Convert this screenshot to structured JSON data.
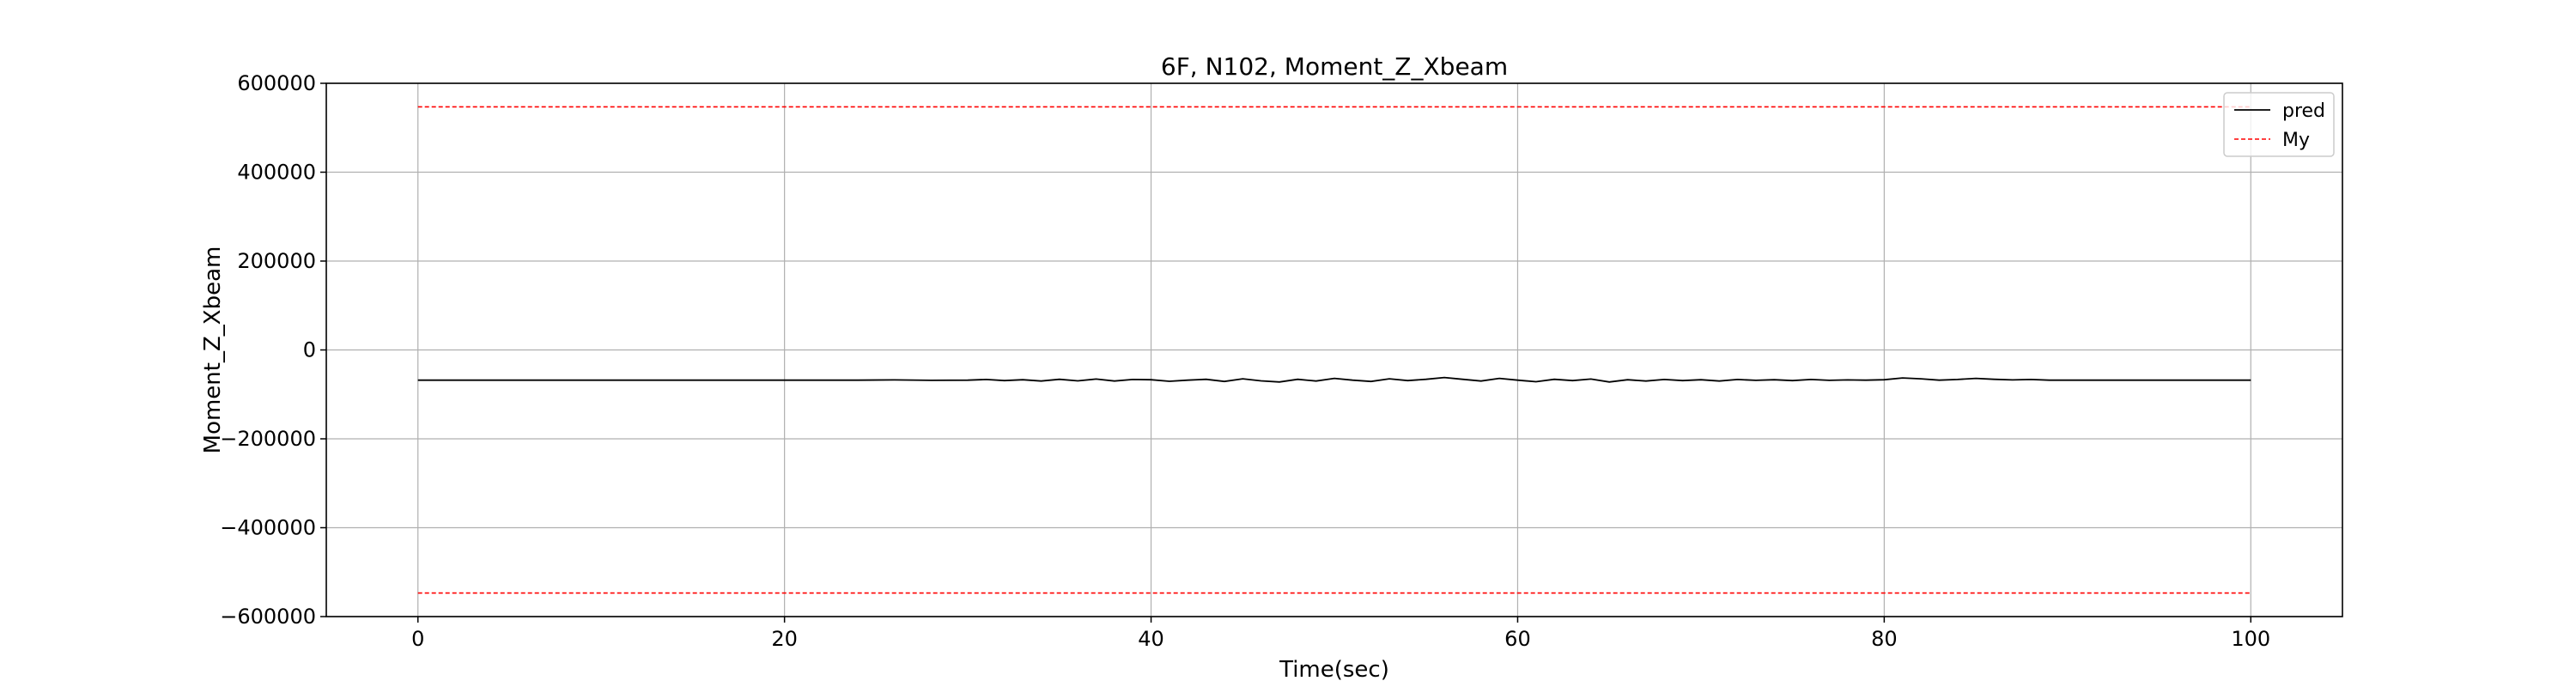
{
  "chart_data": {
    "type": "line",
    "title": "6F, N102, Moment_Z_Xbeam",
    "xlabel": "Time(sec)",
    "ylabel": "Moment_Z_Xbeam",
    "xlim": [
      -5,
      105
    ],
    "ylim": [
      -600000,
      600000
    ],
    "xticks": [
      0,
      20,
      40,
      60,
      80,
      100
    ],
    "yticks": [
      -600000,
      -400000,
      -200000,
      0,
      200000,
      400000,
      600000
    ],
    "grid": true,
    "legend_position": "top-right",
    "series": [
      {
        "name": "pred",
        "color": "#000000",
        "style": "solid",
        "x": [
          0,
          2,
          4,
          6,
          8,
          10,
          12,
          14,
          16,
          18,
          20,
          22,
          24,
          26,
          28,
          30,
          31,
          32,
          33,
          34,
          35,
          36,
          37,
          38,
          39,
          40,
          41,
          42,
          43,
          44,
          45,
          46,
          47,
          48,
          49,
          50,
          51,
          52,
          53,
          54,
          55,
          56,
          57,
          58,
          59,
          60,
          61,
          62,
          63,
          64,
          65,
          66,
          67,
          68,
          69,
          70,
          71,
          72,
          73,
          74,
          75,
          76,
          77,
          78,
          79,
          80,
          81,
          82,
          83,
          84,
          85,
          86,
          87,
          88,
          89,
          90,
          92,
          94,
          96,
          98,
          100
        ],
        "values": [
          -68000,
          -68000,
          -68000,
          -68000,
          -68000,
          -68000,
          -68000,
          -68000,
          -68000,
          -68000,
          -68000,
          -68000,
          -68000,
          -67500,
          -68500,
          -68000,
          -66500,
          -69000,
          -67000,
          -70000,
          -66000,
          -69500,
          -65500,
          -70000,
          -66500,
          -67000,
          -70500,
          -68000,
          -66000,
          -71000,
          -65000,
          -69500,
          -72000,
          -66000,
          -70000,
          -64000,
          -68000,
          -71000,
          -65000,
          -69000,
          -66000,
          -62000,
          -66000,
          -70000,
          -64000,
          -68000,
          -71500,
          -66000,
          -69000,
          -65500,
          -72000,
          -67000,
          -70000,
          -66500,
          -69000,
          -67000,
          -70000,
          -66500,
          -68500,
          -67000,
          -69000,
          -66500,
          -68500,
          -67500,
          -68000,
          -67000,
          -63000,
          -65000,
          -68000,
          -66500,
          -64000,
          -66000,
          -67500,
          -66500,
          -68000,
          -68000,
          -68000,
          -68000,
          -68000,
          -68000,
          -68000
        ]
      },
      {
        "name": "My",
        "color": "#ff0000",
        "style": "dashed",
        "x": [
          0,
          100
        ],
        "values": [
          547000,
          547000
        ]
      },
      {
        "name": "",
        "color": "#ff0000",
        "style": "dashed",
        "x": [
          0,
          100
        ],
        "values": [
          -547000,
          -547000
        ]
      }
    ]
  }
}
